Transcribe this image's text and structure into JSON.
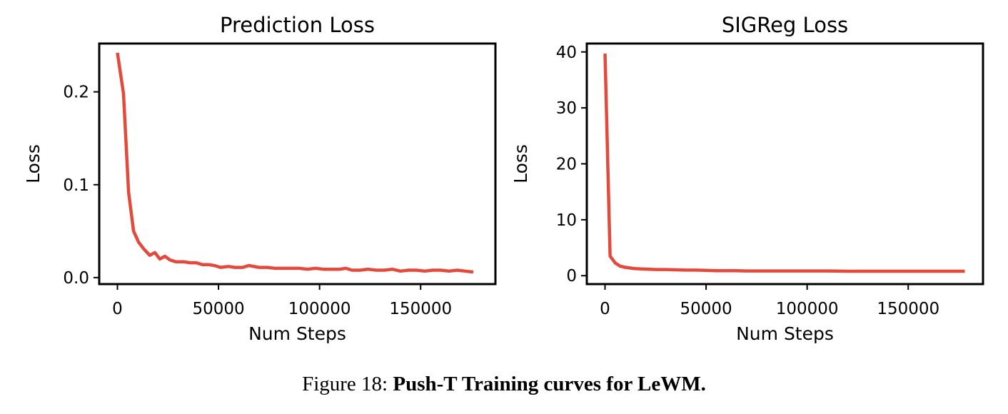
{
  "chart_data": [
    {
      "type": "line",
      "title": "Prediction Loss",
      "xlabel": "Num Steps",
      "ylabel": "Loss",
      "xlim": [
        -9000,
        187000
      ],
      "ylim": [
        -0.007,
        0.252
      ],
      "xticks": [
        0,
        50000,
        100000,
        150000
      ],
      "xtick_labels": [
        "0",
        "50000",
        "100000",
        "150000"
      ],
      "yticks": [
        0.0,
        0.1,
        0.2
      ],
      "ytick_labels": [
        "0.0",
        "0.1",
        "0.2"
      ],
      "grid": false,
      "series": [
        {
          "color": "#e34a3b",
          "x": [
            0,
            3000,
            5500,
            8000,
            10500,
            13000,
            16000,
            18500,
            21000,
            23500,
            26000,
            29000,
            33000,
            36000,
            39000,
            42000,
            45000,
            48000,
            51000,
            55000,
            58000,
            62000,
            65000,
            70000,
            74000,
            78000,
            82000,
            86000,
            90000,
            94000,
            98000,
            102000,
            106000,
            110000,
            113000,
            116000,
            120000,
            124000,
            128000,
            132000,
            136000,
            140000,
            144000,
            148000,
            152000,
            156000,
            160000,
            164000,
            168000,
            172000,
            176000
          ],
          "y": [
            0.242,
            0.198,
            0.092,
            0.05,
            0.038,
            0.031,
            0.024,
            0.027,
            0.02,
            0.023,
            0.019,
            0.017,
            0.017,
            0.016,
            0.016,
            0.014,
            0.014,
            0.013,
            0.011,
            0.012,
            0.011,
            0.011,
            0.013,
            0.011,
            0.011,
            0.01,
            0.01,
            0.01,
            0.01,
            0.009,
            0.01,
            0.009,
            0.009,
            0.009,
            0.01,
            0.008,
            0.008,
            0.009,
            0.008,
            0.008,
            0.009,
            0.007,
            0.008,
            0.008,
            0.007,
            0.008,
            0.008,
            0.007,
            0.008,
            0.007,
            0.006
          ]
        }
      ]
    },
    {
      "type": "line",
      "title": "SIGReg Loss",
      "xlabel": "Num Steps",
      "ylabel": "Loss",
      "xlim": [
        -9000,
        187000
      ],
      "ylim": [
        -1.5,
        41.5
      ],
      "xticks": [
        0,
        50000,
        100000,
        150000
      ],
      "xtick_labels": [
        "0",
        "50000",
        "100000",
        "150000"
      ],
      "yticks": [
        0,
        10,
        20,
        30,
        40
      ],
      "ytick_labels": [
        "0",
        "10",
        "20",
        "30",
        "40"
      ],
      "grid": false,
      "series": [
        {
          "color": "#e34a3b",
          "x": [
            0,
            2500,
            5000,
            7500,
            10000,
            14000,
            18000,
            22000,
            26000,
            30000,
            35000,
            40000,
            45000,
            50000,
            55000,
            60000,
            65000,
            70000,
            80000,
            90000,
            100000,
            110000,
            120000,
            130000,
            140000,
            150000,
            160000,
            170000,
            178000
          ],
          "y": [
            39.7,
            3.5,
            2.3,
            1.7,
            1.5,
            1.3,
            1.2,
            1.15,
            1.1,
            1.1,
            1.05,
            1.0,
            1.0,
            0.95,
            0.9,
            0.9,
            0.9,
            0.85,
            0.85,
            0.85,
            0.85,
            0.85,
            0.8,
            0.8,
            0.8,
            0.8,
            0.8,
            0.8,
            0.8
          ]
        }
      ]
    }
  ],
  "caption": {
    "prefix": "Figure 18: ",
    "bold": "Push-T Training curves for LeWM."
  }
}
